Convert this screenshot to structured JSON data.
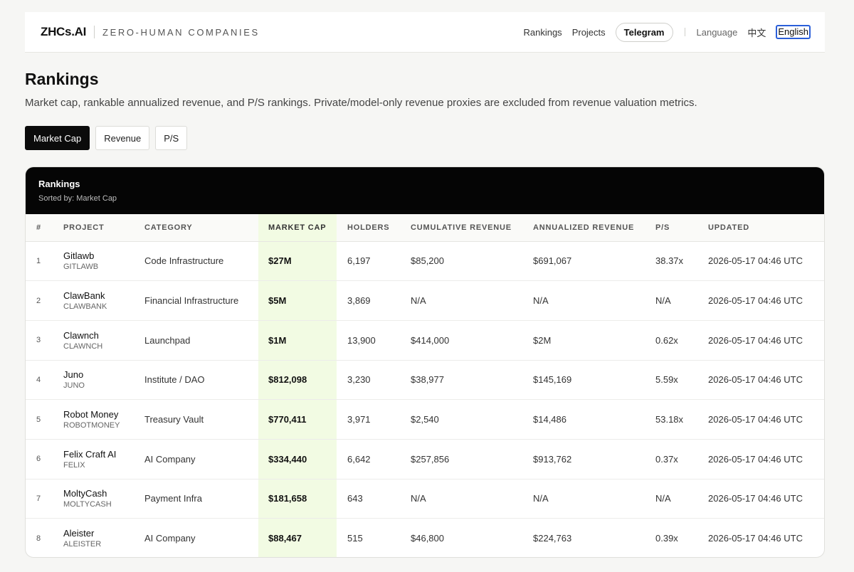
{
  "header": {
    "logo": "ZHCs.AI",
    "tagline": "ZERO-HUMAN COMPANIES",
    "nav": [
      "Rankings",
      "Projects"
    ],
    "telegram": "Telegram",
    "language_label": "Language",
    "lang_zh": "中文",
    "lang_en": "English"
  },
  "page": {
    "title": "Rankings",
    "subtitle": "Market cap, rankable annualized revenue, and P/S rankings. Private/model-only revenue proxies are excluded from revenue valuation metrics."
  },
  "tabs": [
    {
      "label": "Market Cap",
      "active": true
    },
    {
      "label": "Revenue",
      "active": false
    },
    {
      "label": "P/S",
      "active": false
    }
  ],
  "card": {
    "title": "Rankings",
    "sorted_by": "Sorted by: Market Cap"
  },
  "table": {
    "columns": [
      "#",
      "PROJECT",
      "CATEGORY",
      "MARKET CAP",
      "HOLDERS",
      "CUMULATIVE REVENUE",
      "ANNUALIZED REVENUE",
      "P/S",
      "UPDATED"
    ],
    "rows": [
      {
        "rank": "1",
        "name": "Gitlawb",
        "ticker": "GITLAWB",
        "category": "Code Infrastructure",
        "market_cap": "$27M",
        "holders": "6,197",
        "cum_rev": "$85,200",
        "ann_rev": "$691,067",
        "ps": "38.37x",
        "updated": "2026-05-17 04:46 UTC"
      },
      {
        "rank": "2",
        "name": "ClawBank",
        "ticker": "CLAWBANK",
        "category": "Financial Infrastructure",
        "market_cap": "$5M",
        "holders": "3,869",
        "cum_rev": "N/A",
        "ann_rev": "N/A",
        "ps": "N/A",
        "updated": "2026-05-17 04:46 UTC"
      },
      {
        "rank": "3",
        "name": "Clawnch",
        "ticker": "CLAWNCH",
        "category": "Launchpad",
        "market_cap": "$1M",
        "holders": "13,900",
        "cum_rev": "$414,000",
        "ann_rev": "$2M",
        "ps": "0.62x",
        "updated": "2026-05-17 04:46 UTC"
      },
      {
        "rank": "4",
        "name": "Juno",
        "ticker": "JUNO",
        "category": "Institute / DAO",
        "market_cap": "$812,098",
        "holders": "3,230",
        "cum_rev": "$38,977",
        "ann_rev": "$145,169",
        "ps": "5.59x",
        "updated": "2026-05-17 04:46 UTC"
      },
      {
        "rank": "5",
        "name": "Robot Money",
        "ticker": "ROBOTMONEY",
        "category": "Treasury Vault",
        "market_cap": "$770,411",
        "holders": "3,971",
        "cum_rev": "$2,540",
        "ann_rev": "$14,486",
        "ps": "53.18x",
        "updated": "2026-05-17 04:46 UTC"
      },
      {
        "rank": "6",
        "name": "Felix Craft AI",
        "ticker": "FELIX",
        "category": "AI Company",
        "market_cap": "$334,440",
        "holders": "6,642",
        "cum_rev": "$257,856",
        "ann_rev": "$913,762",
        "ps": "0.37x",
        "updated": "2026-05-17 04:46 UTC"
      },
      {
        "rank": "7",
        "name": "MoltyCash",
        "ticker": "MOLTYCASH",
        "category": "Payment Infra",
        "market_cap": "$181,658",
        "holders": "643",
        "cum_rev": "N/A",
        "ann_rev": "N/A",
        "ps": "N/A",
        "updated": "2026-05-17 04:46 UTC"
      },
      {
        "rank": "8",
        "name": "Aleister",
        "ticker": "ALEISTER",
        "category": "AI Company",
        "market_cap": "$88,467",
        "holders": "515",
        "cum_rev": "$46,800",
        "ann_rev": "$224,763",
        "ps": "0.39x",
        "updated": "2026-05-17 04:46 UTC"
      }
    ]
  }
}
